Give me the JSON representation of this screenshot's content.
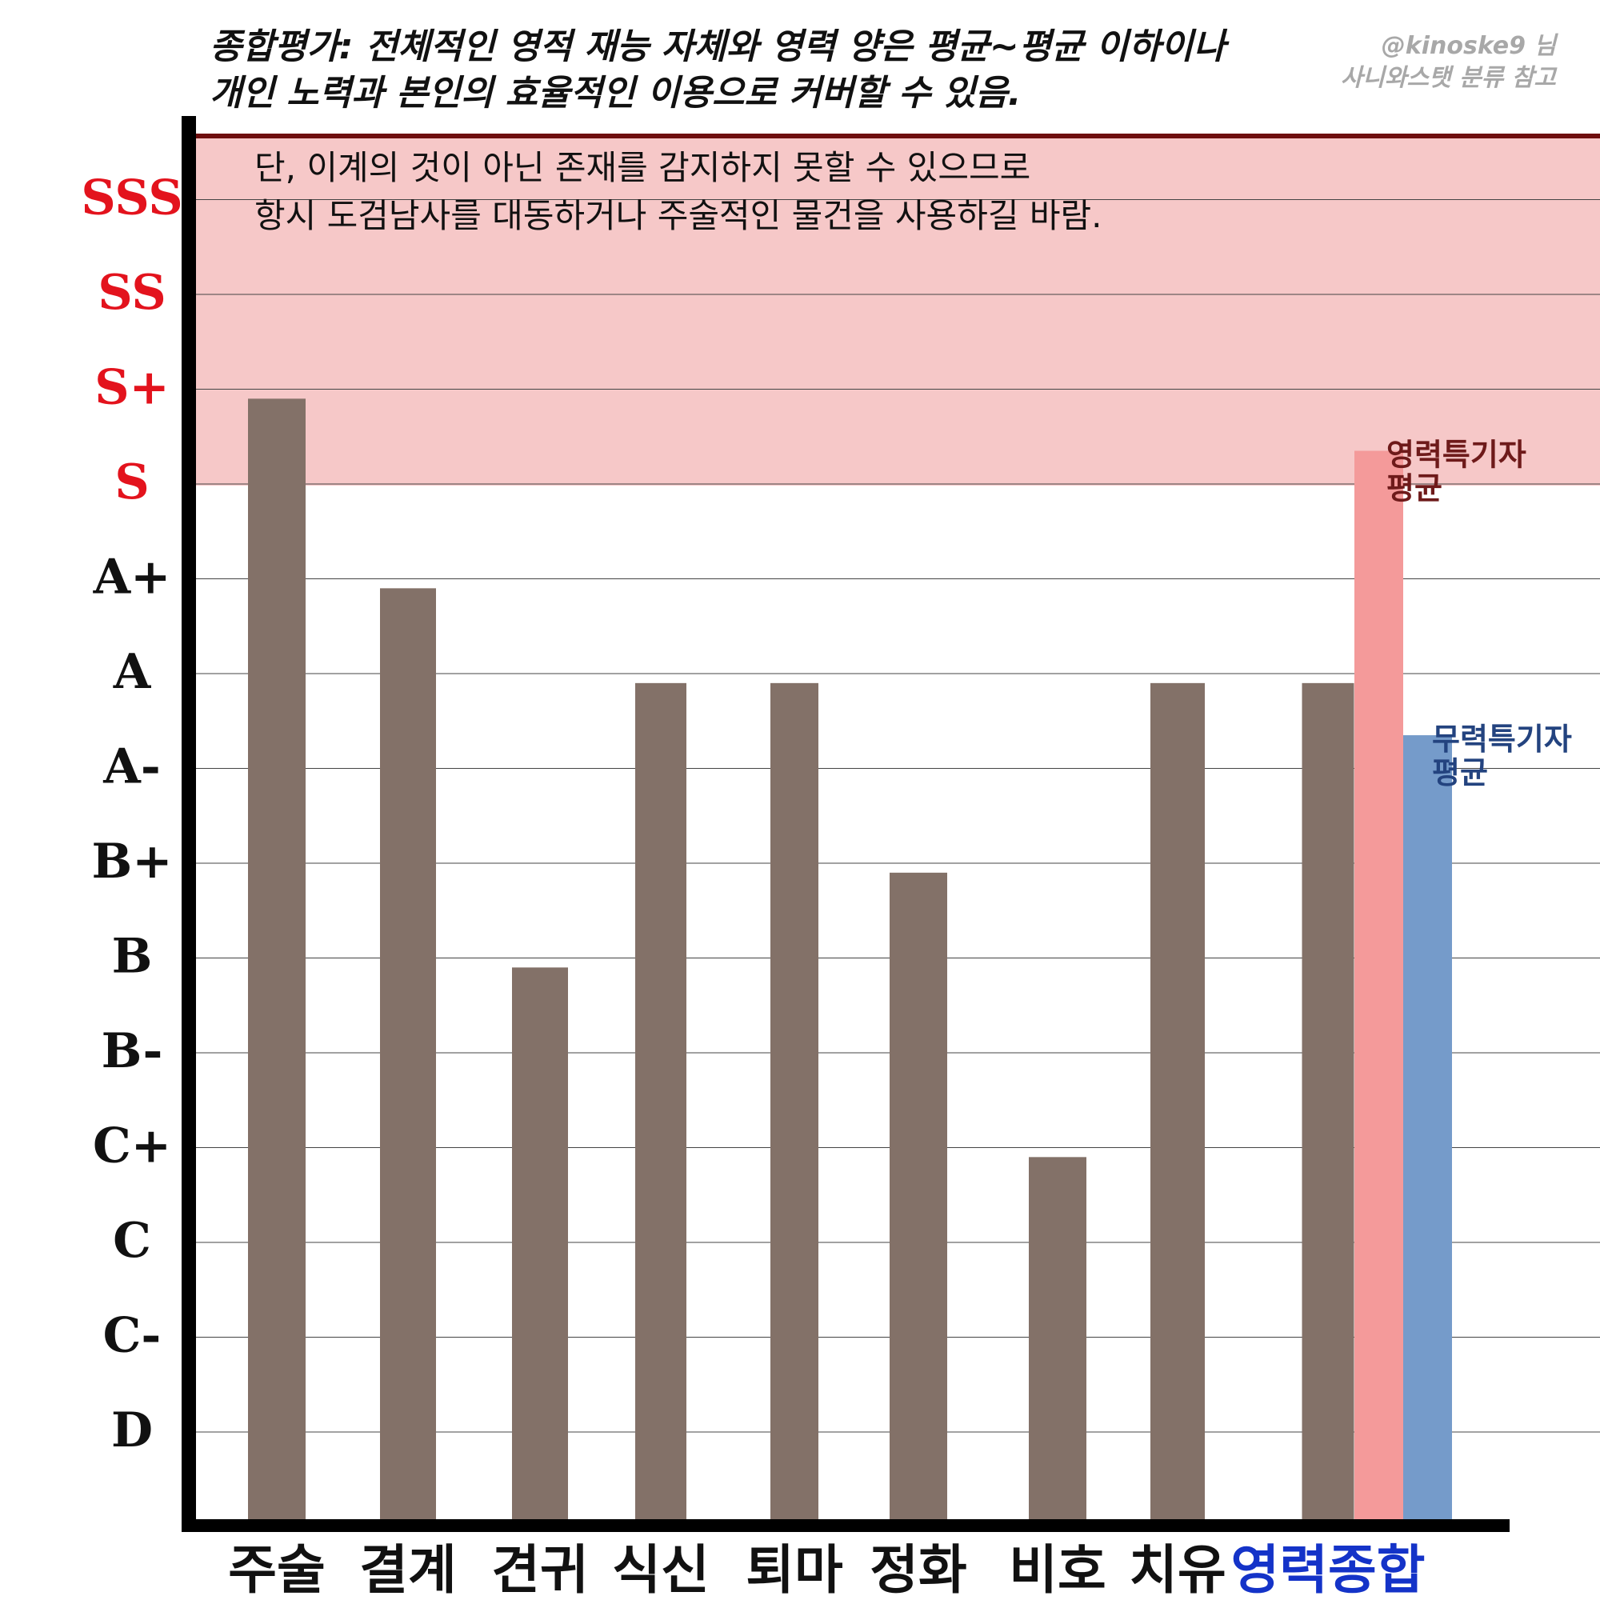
{
  "header": {
    "title_line1": "종합평가: 전체적인 영적 재능 자체와 영력 양은 평균~평균 이하이나",
    "title_line2": "개인 노력과 본인의 효율적인 이용으로 커버할 수 있음.",
    "credit_line1": "@kinoske9 님",
    "credit_line2": "사니와스탯 분류 참고"
  },
  "note": {
    "line1": "단, 이계의 것이 아닌 존재를 감지하지 못할 수 있으므로",
    "line2": "항시 도검남사를 대동하거나 주술적인 물건을 사용하길 바람."
  },
  "colors": {
    "bar": "#837168",
    "band": "#f6c8c8",
    "band_border": "#6e0e0e",
    "spirit_avg": "#f49a9a",
    "martial_avg": "#759bca",
    "grade_high": "#e3131d",
    "grade_normal": "#111111",
    "category_highlight": "#1433c8"
  },
  "chart_data": {
    "type": "bar",
    "y_scale": "grade",
    "grades": [
      "D",
      "C-",
      "C",
      "C+",
      "B-",
      "B",
      "B+",
      "A-",
      "A",
      "A+",
      "S",
      "S+",
      "SS",
      "SSS"
    ],
    "highlighted_grades": [
      "S",
      "S+",
      "SS",
      "SSS"
    ],
    "shaded_band": {
      "from_grade": "S",
      "to": "top"
    },
    "categories": [
      "주술",
      "결계",
      "견귀",
      "식신",
      "퇴마",
      "정화",
      "비호",
      "치유",
      "영력종합"
    ],
    "highlighted_category": "영력종합",
    "series": [
      {
        "values": [
          10.9,
          8.9,
          4.9,
          7.9,
          7.9,
          5.9,
          2.9,
          7.9,
          7.9
        ]
      }
    ],
    "comparison_bars": [
      {
        "label_line1": "영력특기자",
        "label_line2": "평균",
        "value": 10.35,
        "label_color": "#6e1a1a"
      },
      {
        "label_line1": "무력특기자",
        "label_line2": "평균",
        "value": 7.35,
        "label_color": "#23437f"
      }
    ]
  }
}
